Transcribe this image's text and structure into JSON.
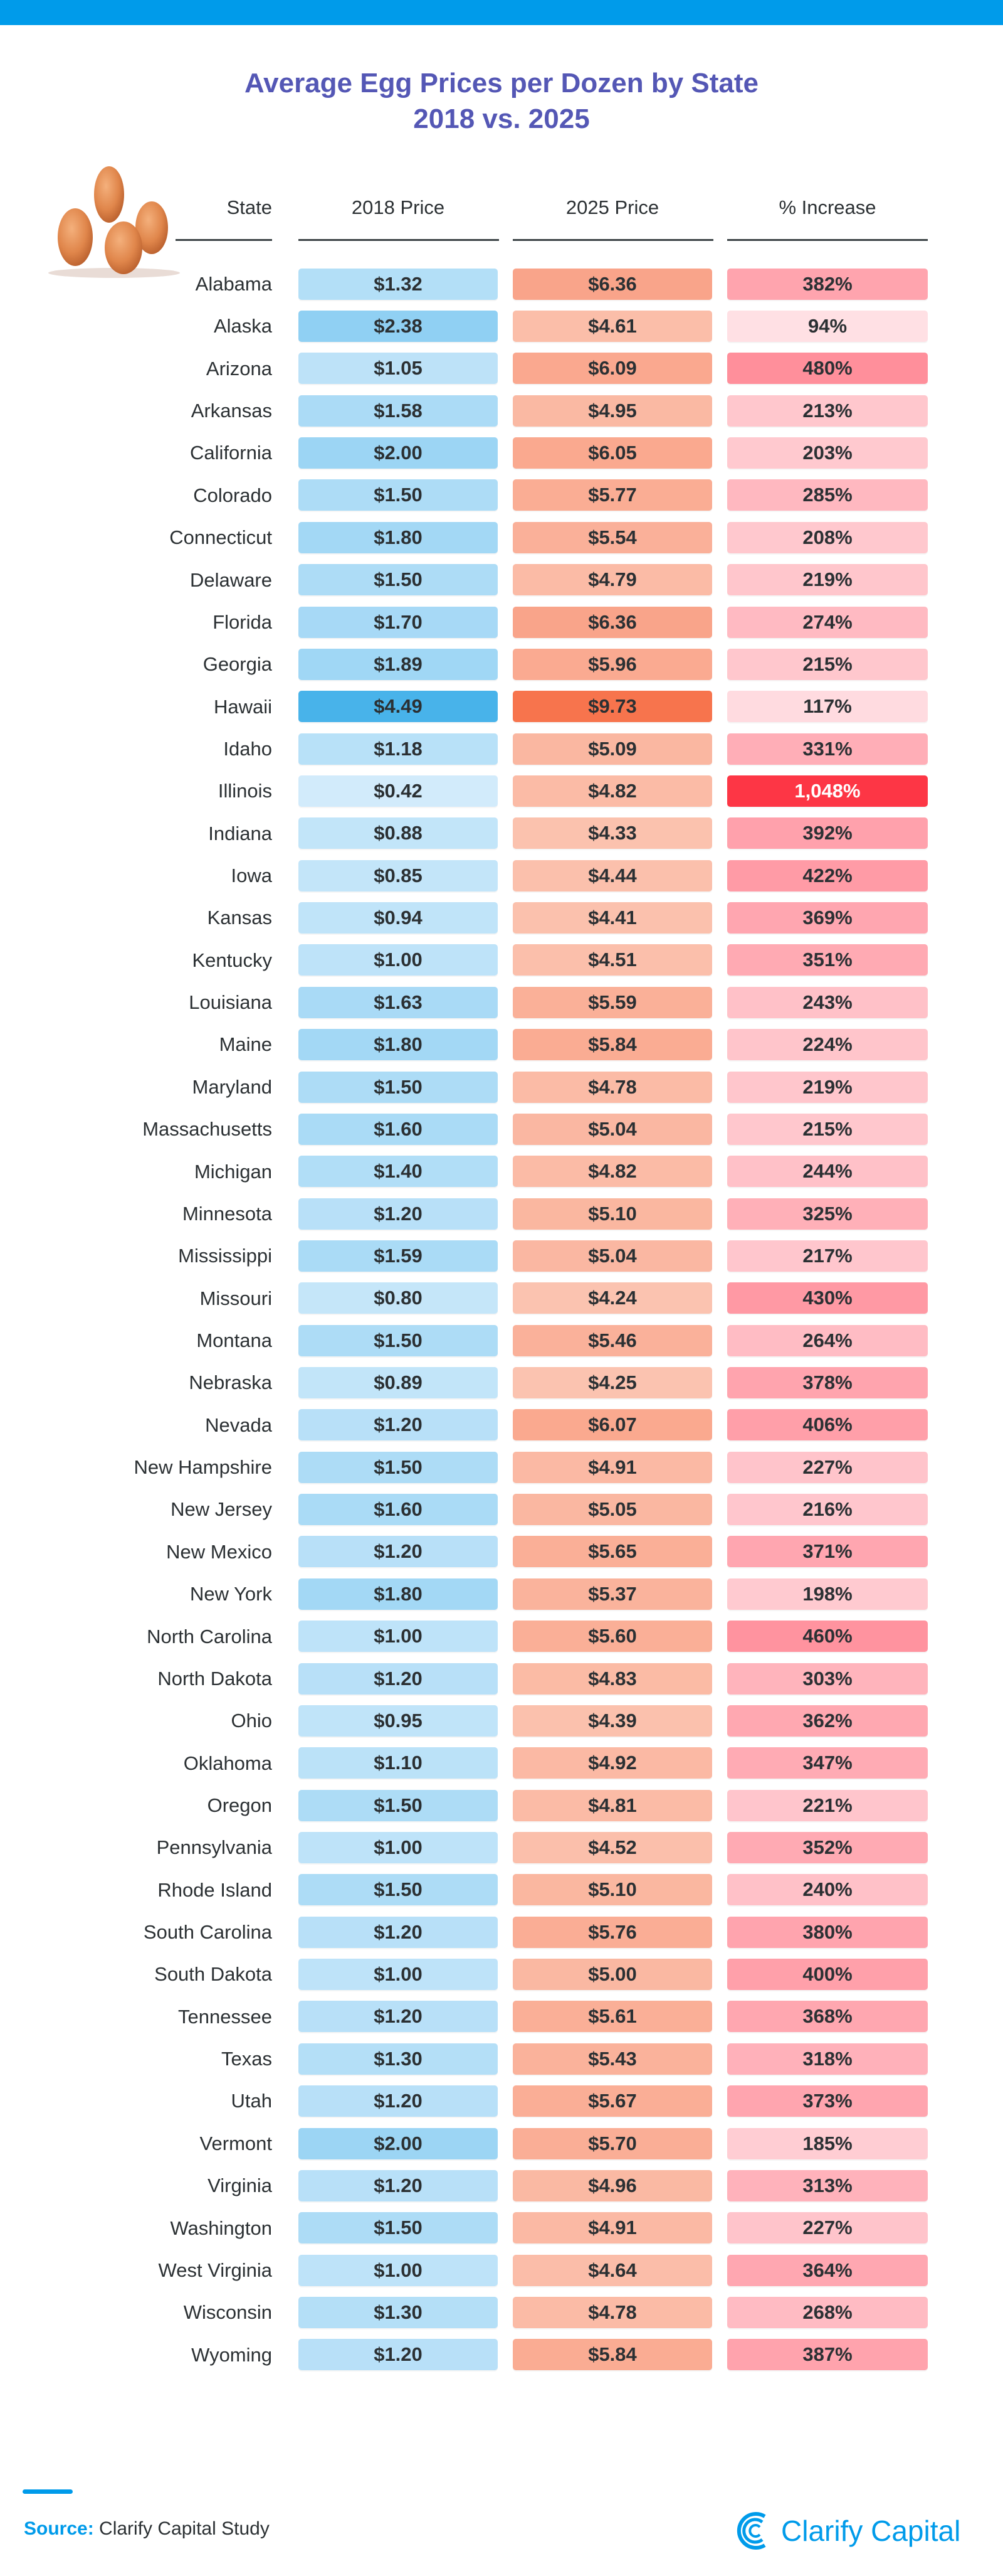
{
  "chart_data": {
    "type": "table",
    "title": "Average Egg Prices per Dozen by State",
    "subtitle": "2018 vs. 2025",
    "columns": [
      "State",
      "2018 Price",
      "2025 Price",
      "% Increase"
    ],
    "rows": [
      [
        "Alabama",
        "$1.32",
        "$6.36",
        "382%"
      ],
      [
        "Alaska",
        "$2.38",
        "$4.61",
        "94%"
      ],
      [
        "Arizona",
        "$1.05",
        "$6.09",
        "480%"
      ],
      [
        "Arkansas",
        "$1.58",
        "$4.95",
        "213%"
      ],
      [
        "California",
        "$2.00",
        "$6.05",
        "203%"
      ],
      [
        "Colorado",
        "$1.50",
        "$5.77",
        "285%"
      ],
      [
        "Connecticut",
        "$1.80",
        "$5.54",
        "208%"
      ],
      [
        "Delaware",
        "$1.50",
        "$4.79",
        "219%"
      ],
      [
        "Florida",
        "$1.70",
        "$6.36",
        "274%"
      ],
      [
        "Georgia",
        "$1.89",
        "$5.96",
        "215%"
      ],
      [
        "Hawaii",
        "$4.49",
        "$9.73",
        "117%"
      ],
      [
        "Idaho",
        "$1.18",
        "$5.09",
        "331%"
      ],
      [
        "Illinois",
        "$0.42",
        "$4.82",
        "1,048%"
      ],
      [
        "Indiana",
        "$0.88",
        "$4.33",
        "392%"
      ],
      [
        "Iowa",
        "$0.85",
        "$4.44",
        "422%"
      ],
      [
        "Kansas",
        "$0.94",
        "$4.41",
        "369%"
      ],
      [
        "Kentucky",
        "$1.00",
        "$4.51",
        "351%"
      ],
      [
        "Louisiana",
        "$1.63",
        "$5.59",
        "243%"
      ],
      [
        "Maine",
        "$1.80",
        "$5.84",
        "224%"
      ],
      [
        "Maryland",
        "$1.50",
        "$4.78",
        "219%"
      ],
      [
        "Massachusetts",
        "$1.60",
        "$5.04",
        "215%"
      ],
      [
        "Michigan",
        "$1.40",
        "$4.82",
        "244%"
      ],
      [
        "Minnesota",
        "$1.20",
        "$5.10",
        "325%"
      ],
      [
        "Mississippi",
        "$1.59",
        "$5.04",
        "217%"
      ],
      [
        "Missouri",
        "$0.80",
        "$4.24",
        "430%"
      ],
      [
        "Montana",
        "$1.50",
        "$5.46",
        "264%"
      ],
      [
        "Nebraska",
        "$0.89",
        "$4.25",
        "378%"
      ],
      [
        "Nevada",
        "$1.20",
        "$6.07",
        "406%"
      ],
      [
        "New Hampshire",
        "$1.50",
        "$4.91",
        "227%"
      ],
      [
        "New Jersey",
        "$1.60",
        "$5.05",
        "216%"
      ],
      [
        "New Mexico",
        "$1.20",
        "$5.65",
        "371%"
      ],
      [
        "New York",
        "$1.80",
        "$5.37",
        "198%"
      ],
      [
        "North Carolina",
        "$1.00",
        "$5.60",
        "460%"
      ],
      [
        "North Dakota",
        "$1.20",
        "$4.83",
        "303%"
      ],
      [
        "Ohio",
        "$0.95",
        "$4.39",
        "362%"
      ],
      [
        "Oklahoma",
        "$1.10",
        "$4.92",
        "347%"
      ],
      [
        "Oregon",
        "$1.50",
        "$4.81",
        "221%"
      ],
      [
        "Pennsylvania",
        "$1.00",
        "$4.52",
        "352%"
      ],
      [
        "Rhode Island",
        "$1.50",
        "$5.10",
        "240%"
      ],
      [
        "South Carolina",
        "$1.20",
        "$5.76",
        "380%"
      ],
      [
        "South Dakota",
        "$1.00",
        "$5.00",
        "400%"
      ],
      [
        "Tennessee",
        "$1.20",
        "$5.61",
        "368%"
      ],
      [
        "Texas",
        "$1.30",
        "$5.43",
        "318%"
      ],
      [
        "Utah",
        "$1.20",
        "$5.67",
        "373%"
      ],
      [
        "Vermont",
        "$2.00",
        "$5.70",
        "185%"
      ],
      [
        "Virginia",
        "$1.20",
        "$4.96",
        "313%"
      ],
      [
        "Washington",
        "$1.50",
        "$4.91",
        "227%"
      ],
      [
        "West Virginia",
        "$1.00",
        "$4.64",
        "364%"
      ],
      [
        "Wisconsin",
        "$1.30",
        "$4.78",
        "268%"
      ],
      [
        "Wyoming",
        "$1.20",
        "$5.84",
        "387%"
      ]
    ],
    "color_scales": {
      "price_2018": [
        "#d2ebfb",
        "#48b3ea"
      ],
      "price_2025": [
        "#fbc3b0",
        "#f7744d"
      ],
      "increase": [
        "#ffe0e4",
        "#ff8f9b"
      ],
      "increase_max": "#fd3645"
    }
  },
  "colors": {
    "title": "#5457b5",
    "brand": "#009bea"
  },
  "footer": {
    "source_label": "Source:",
    "source_text": "Clarify Capital Study",
    "logo_text": "Clarify Capital"
  }
}
